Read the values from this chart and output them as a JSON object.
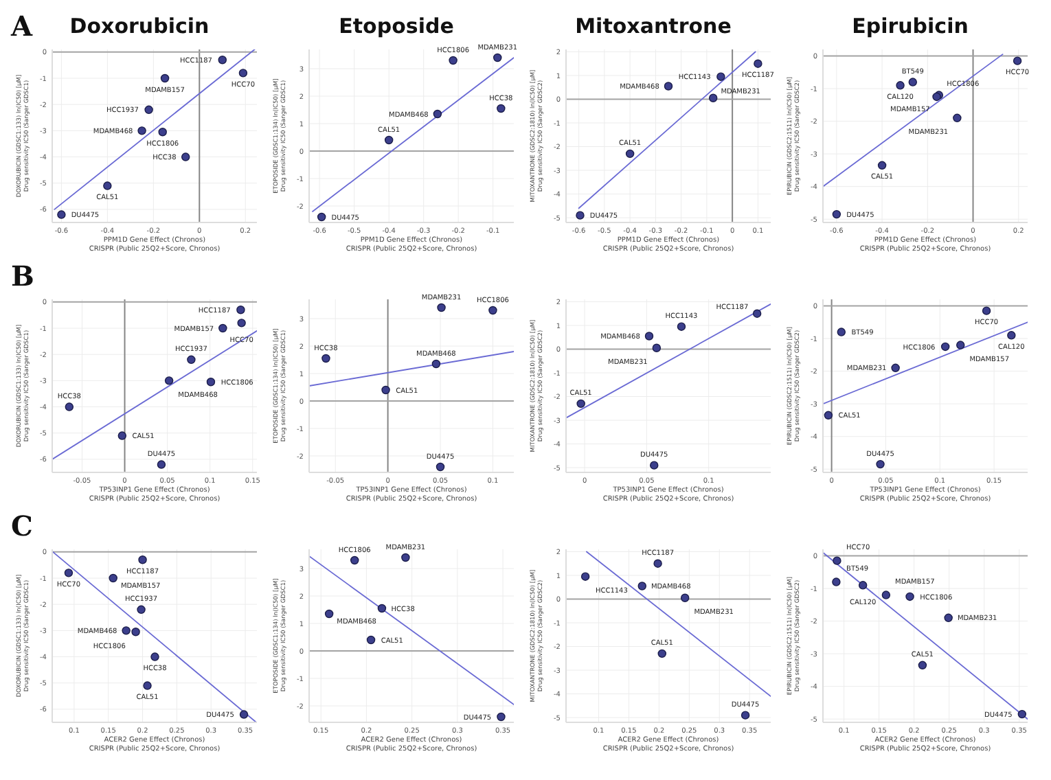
{
  "chart_data": [
    {
      "type": "scatter",
      "title": "Doxorubicin",
      "xlabel": "PPM1D Gene Effect (Chronos)\nCRISPR (Public 25Q2+Score, Chronos)",
      "ylabel": "DOXORUBICIN (GDSC1:133) ln(IC50) [µM]\nDrug sensitivity IC50 (Sanger GDSC1)",
      "xlim": [
        -0.64,
        0.25
      ],
      "xticks": [
        -0.6,
        -0.4,
        -0.2,
        0,
        0.2
      ],
      "ylim": [
        -6.5,
        0.1
      ],
      "yticks": [
        -6,
        -5,
        -4,
        -3,
        -2,
        -1,
        0
      ],
      "grid": true,
      "series": [
        {
          "color": "#3c3f8c",
          "marker": "circle",
          "x": [
            0.1,
            0.19,
            -0.15,
            -0.22,
            -0.25,
            -0.16,
            -0.06,
            -0.4,
            -0.6
          ],
          "values": [
            -0.3,
            -0.8,
            -1,
            -2.2,
            -3,
            -3.05,
            -4,
            -5.1,
            -6.2
          ]
        },
        {
          "type": "line",
          "color": "#6a6ad4",
          "marker": "none",
          "x": [
            -0.63,
            0.24
          ],
          "values": [
            -6,
            0.1
          ]
        }
      ],
      "ref_lines": [
        {
          "axis": "x",
          "value": 0
        },
        {
          "axis": "y",
          "value": 0
        }
      ],
      "annotations": [
        "A",
        {
          "text": "HCC1187",
          "x": 0.1,
          "y": -0.3
        },
        {
          "text": "HCC70",
          "x": 0.19,
          "y": -0.8
        },
        {
          "text": "MDAMB157",
          "x": -0.15,
          "y": -1
        },
        {
          "text": "HCC1937",
          "x": -0.22,
          "y": -2.2
        },
        {
          "text": "MDAMB468",
          "x": -0.25,
          "y": -3
        },
        {
          "text": "HCC1806",
          "x": -0.16,
          "y": -3.05
        },
        {
          "text": "HCC38",
          "x": -0.06,
          "y": -4
        },
        {
          "text": "CAL51",
          "x": -0.4,
          "y": -5.1
        },
        {
          "text": "DU4475",
          "x": -0.6,
          "y": -6.2
        }
      ]
    },
    {
      "type": "scatter",
      "title": "Etoposide",
      "xlabel": "PPM1D Gene Effect (Chronos)\nCRISPR (Public 25Q2+Score, Chronos)",
      "ylabel": "ETOPOSIDE (GDSC1:134) ln(IC50) [µM]\nDrug sensitivity IC50 (Sanger GDSC1)",
      "xlim": [
        -0.63,
        -0.04
      ],
      "xticks": [
        -0.6,
        -0.5,
        -0.4,
        -0.3,
        -0.2,
        -0.1
      ],
      "ylim": [
        -2.6,
        3.7
      ],
      "yticks": [
        -2,
        -1,
        0,
        1,
        2,
        3
      ],
      "grid": true,
      "series": [
        {
          "color": "#3c3f8c",
          "marker": "circle",
          "x": [
            -0.215,
            -0.087,
            -0.077,
            -0.26,
            -0.4,
            -0.594
          ],
          "values": [
            3.3,
            3.4,
            1.55,
            1.35,
            0.4,
            -2.4
          ]
        },
        {
          "type": "line",
          "color": "#6a6ad4",
          "marker": "none",
          "x": [
            -0.62,
            -0.04
          ],
          "values": [
            -2.2,
            3.4
          ]
        }
      ],
      "ref_lines": [
        {
          "axis": "y",
          "value": 0
        }
      ],
      "annotations": [
        {
          "text": "HCC1806",
          "x": -0.215,
          "y": 3.3
        },
        {
          "text": "MDAMB231",
          "x": -0.087,
          "y": 3.4
        },
        {
          "text": "HCC38",
          "x": -0.077,
          "y": 1.55
        },
        {
          "text": "MDAMB468",
          "x": -0.26,
          "y": 1.35
        },
        {
          "text": "CAL51",
          "x": -0.4,
          "y": 0.4
        },
        {
          "text": "DU4475",
          "x": -0.594,
          "y": -2.4
        }
      ]
    },
    {
      "type": "scatter",
      "title": "Mitoxantrone",
      "xlabel": "PPM1D Gene Effect (Chronos)\nCRISPR (Public 25Q2+Score, Chronos)",
      "ylabel": "MITOXANTRONE (GDSC2:1810) ln(IC50) [µM]\nDrug sensitivity IC50 (Sanger GDSC2)",
      "xlim": [
        -0.65,
        0.15
      ],
      "xticks": [
        -0.6,
        -0.5,
        -0.4,
        -0.3,
        -0.2,
        -0.1,
        0,
        0.1
      ],
      "ylim": [
        -5.2,
        2.1
      ],
      "yticks": [
        -5,
        -4,
        -3,
        -2,
        -1,
        0,
        1,
        2
      ],
      "grid": true,
      "series": [
        {
          "color": "#3c3f8c",
          "marker": "circle",
          "x": [
            0.1,
            -0.045,
            -0.25,
            -0.075,
            -0.4,
            -0.595
          ],
          "values": [
            1.5,
            0.95,
            0.55,
            0.05,
            -2.3,
            -4.9
          ]
        },
        {
          "type": "line",
          "color": "#6a6ad4",
          "marker": "none",
          "x": [
            -0.6,
            0.09
          ],
          "values": [
            -4.6,
            2
          ]
        }
      ],
      "ref_lines": [
        {
          "axis": "x",
          "value": 0
        },
        {
          "axis": "y",
          "value": 0
        }
      ],
      "annotations": [
        {
          "text": "HCC1187",
          "x": 0.1,
          "y": 1.5
        },
        {
          "text": "HCC1143",
          "x": -0.045,
          "y": 0.95
        },
        {
          "text": "MDAMB468",
          "x": -0.25,
          "y": 0.55
        },
        {
          "text": "MDAMB231",
          "x": -0.075,
          "y": 0.05
        },
        {
          "text": "CAL51",
          "x": -0.4,
          "y": -2.3
        },
        {
          "text": "DU4475",
          "x": -0.595,
          "y": -4.9
        }
      ]
    },
    {
      "type": "scatter",
      "title": "Epirubicin",
      "xlabel": "PPM1D Gene Effect (Chronos)\nCRISPR (Public 25Q2+Score, Chronos)",
      "ylabel": "EPIRUBICIN (GDSC2:1511) ln(IC50) [µM]\nDrug sensitivity IC50 (Sanger GDSC2)",
      "xlim": [
        -0.66,
        0.24
      ],
      "xticks": [
        -0.6,
        -0.4,
        -0.2,
        0,
        0.2
      ],
      "ylim": [
        -5.1,
        0.2
      ],
      "yticks": [
        -5,
        -4,
        -3,
        -2,
        -1,
        0
      ],
      "grid": true,
      "series": [
        {
          "color": "#3c3f8c",
          "marker": "circle",
          "x": [
            0.195,
            -0.265,
            -0.32,
            -0.15,
            -0.16,
            -0.07,
            -0.4,
            -0.6
          ],
          "values": [
            -0.15,
            -0.8,
            -0.9,
            -1.2,
            -1.25,
            -1.9,
            -3.35,
            -4.85
          ]
        },
        {
          "type": "line",
          "color": "#6a6ad4",
          "marker": "none",
          "x": [
            -0.66,
            0.13
          ],
          "values": [
            -4,
            0.05
          ]
        }
      ],
      "ref_lines": [
        {
          "axis": "x",
          "value": 0
        },
        {
          "axis": "y",
          "value": 0
        }
      ],
      "annotations": [
        {
          "text": "HCC70",
          "x": 0.195,
          "y": -0.15
        },
        {
          "text": "BT549",
          "x": -0.265,
          "y": -0.8
        },
        {
          "text": "CAL120",
          "x": -0.32,
          "y": -0.9
        },
        {
          "text": "MDAMB157",
          "x": -0.15,
          "y": -1.2
        },
        {
          "text": "HCC1806",
          "x": -0.16,
          "y": -1.25
        },
        {
          "text": "MDAMB231",
          "x": -0.07,
          "y": -1.9
        },
        {
          "text": "CAL51",
          "x": -0.4,
          "y": -3.35
        },
        {
          "text": "DU4475",
          "x": -0.6,
          "y": -4.85
        }
      ]
    },
    {
      "type": "scatter",
      "xlabel": "TP53INP1 Gene Effect (Chronos)\nCRISPR (Public 25Q2+Score, Chronos)",
      "ylabel": "DOXORUBICIN (GDSC1:133) ln(IC50) [µM]\nDrug sensitivity IC50 (Sanger GDSC1)",
      "xlim": [
        -0.085,
        0.155
      ],
      "xticks": [
        -0.05,
        0,
        0.05,
        0.1,
        0.15
      ],
      "ylim": [
        -6.5,
        0.1
      ],
      "yticks": [
        -6,
        -5,
        -4,
        -3,
        -2,
        -1,
        0
      ],
      "grid": true,
      "series": [
        {
          "color": "#3c3f8c",
          "marker": "circle",
          "x": [
            0.136,
            0.137,
            0.115,
            0.078,
            0.052,
            0.101,
            -0.065,
            -0.003,
            0.043
          ],
          "values": [
            -0.3,
            -0.8,
            -1,
            -2.2,
            -3,
            -3.05,
            -4,
            -5.1,
            -6.2
          ]
        },
        {
          "type": "line",
          "color": "#6a6ad4",
          "marker": "none",
          "x": [
            -0.085,
            0.155
          ],
          "values": [
            -6,
            -1.1
          ]
        }
      ],
      "ref_lines": [
        {
          "axis": "x",
          "value": 0
        },
        {
          "axis": "y",
          "value": 0
        }
      ],
      "annotations": [
        "B",
        {
          "text": "HCC1187",
          "x": 0.136,
          "y": -0.3
        },
        {
          "text": "HCC70",
          "x": 0.137,
          "y": -0.8
        },
        {
          "text": "MDAMB157",
          "x": 0.115,
          "y": -1
        },
        {
          "text": "HCC1937",
          "x": 0.078,
          "y": -2.2
        },
        {
          "text": "MDAMB468",
          "x": 0.052,
          "y": -3
        },
        {
          "text": "HCC1806",
          "x": 0.101,
          "y": -3.05
        },
        {
          "text": "HCC38",
          "x": -0.065,
          "y": -4
        },
        {
          "text": "CAL51",
          "x": -0.003,
          "y": -5.1
        },
        {
          "text": "DU4475",
          "x": 0.043,
          "y": -6.2
        }
      ]
    },
    {
      "type": "scatter",
      "xlabel": "TP53INP1 Gene Effect (Chronos)\nCRISPR (Public 25Q2+Score, Chronos)",
      "ylabel": "ETOPOSIDE (GDSC1:134) ln(IC50) [µM]\nDrug sensitivity IC50 (Sanger GDSC1)",
      "xlim": [
        -0.075,
        0.12
      ],
      "xticks": [
        -0.05,
        0,
        0.05,
        0.1
      ],
      "ylim": [
        -2.6,
        3.7
      ],
      "yticks": [
        -2,
        -1,
        0,
        1,
        2,
        3
      ],
      "grid": true,
      "series": [
        {
          "color": "#3c3f8c",
          "marker": "circle",
          "x": [
            0.1,
            0.051,
            -0.059,
            0.046,
            -0.002,
            0.05
          ],
          "values": [
            3.3,
            3.4,
            1.55,
            1.35,
            0.4,
            -2.4
          ]
        },
        {
          "type": "line",
          "color": "#6a6ad4",
          "marker": "none",
          "x": [
            -0.075,
            0.12
          ],
          "values": [
            0.55,
            1.8
          ]
        }
      ],
      "ref_lines": [
        {
          "axis": "x",
          "value": 0
        },
        {
          "axis": "y",
          "value": 0
        }
      ],
      "annotations": [
        {
          "text": "HCC1806",
          "x": 0.1,
          "y": 3.3
        },
        {
          "text": "MDAMB231",
          "x": 0.051,
          "y": 3.4
        },
        {
          "text": "HCC38",
          "x": -0.059,
          "y": 1.55
        },
        {
          "text": "MDAMB468",
          "x": 0.046,
          "y": 1.35
        },
        {
          "text": "CAL51",
          "x": -0.002,
          "y": 0.4
        },
        {
          "text": "DU4475",
          "x": 0.05,
          "y": -2.4
        }
      ]
    },
    {
      "type": "scatter",
      "xlabel": "TP53INP1 Gene Effect (Chronos)\nCRISPR (Public 25Q2+Score, Chronos)",
      "ylabel": "MITOXANTRONE (GDSC2:1810) ln(IC50) [µM]\nDrug sensitivity IC50 (Sanger GDSC2)",
      "xlim": [
        -0.015,
        0.15
      ],
      "xticks": [
        0,
        0.05,
        0.1
      ],
      "ylim": [
        -5.2,
        2.1
      ],
      "yticks": [
        -5,
        -4,
        -3,
        -2,
        -1,
        0,
        1,
        2
      ],
      "grid": true,
      "series": [
        {
          "color": "#3c3f8c",
          "marker": "circle",
          "x": [
            0.139,
            0.078,
            0.052,
            0.058,
            -0.003,
            0.056
          ],
          "values": [
            1.5,
            0.95,
            0.55,
            0.05,
            -2.3,
            -4.9
          ]
        },
        {
          "type": "line",
          "color": "#6a6ad4",
          "marker": "none",
          "x": [
            -0.015,
            0.15
          ],
          "values": [
            -2.9,
            1.9
          ]
        }
      ],
      "ref_lines": [
        {
          "axis": "y",
          "value": 0
        }
      ],
      "annotations": [
        {
          "text": "HCC1187",
          "x": 0.139,
          "y": 1.5
        },
        {
          "text": "HCC1143",
          "x": 0.078,
          "y": 0.95
        },
        {
          "text": "MDAMB468",
          "x": 0.052,
          "y": 0.55
        },
        {
          "text": "MDAMB231",
          "x": 0.058,
          "y": 0.05
        },
        {
          "text": "CAL51",
          "x": -0.003,
          "y": -2.3
        },
        {
          "text": "DU4475",
          "x": 0.056,
          "y": -4.9
        }
      ]
    },
    {
      "type": "scatter",
      "xlabel": "TP53INP1 Gene Effect (Chronos)\nCRISPR (Public 25Q2+Score, Chronos)",
      "ylabel": "EPIRUBICIN (GDSC2:1511) ln(IC50) [µM]\nDrug sensitivity IC50 (Sanger GDSC2)",
      "xlim": [
        -0.008,
        0.181
      ],
      "xticks": [
        0,
        0.05,
        0.1,
        0.15
      ],
      "ylim": [
        -5.1,
        0.2
      ],
      "yticks": [
        -5,
        -4,
        -3,
        -2,
        -1,
        0
      ],
      "grid": true,
      "series": [
        {
          "color": "#3c3f8c",
          "marker": "circle",
          "x": [
            0.143,
            0.009,
            0.166,
            0.119,
            0.105,
            0.059,
            -0.003,
            0.045
          ],
          "values": [
            -0.15,
            -0.8,
            -0.9,
            -1.2,
            -1.25,
            -1.9,
            -3.35,
            -4.85
          ]
        },
        {
          "type": "line",
          "color": "#6a6ad4",
          "marker": "none",
          "x": [
            -0.008,
            0.181
          ],
          "values": [
            -3,
            -0.5
          ]
        }
      ],
      "ref_lines": [
        {
          "axis": "x",
          "value": 0
        },
        {
          "axis": "y",
          "value": 0
        }
      ],
      "annotations": [
        {
          "text": "HCC70",
          "x": 0.143,
          "y": -0.15
        },
        {
          "text": "BT549",
          "x": 0.009,
          "y": -0.8
        },
        {
          "text": "CAL120",
          "x": 0.166,
          "y": -0.9
        },
        {
          "text": "MDAMB157",
          "x": 0.119,
          "y": -1.2
        },
        {
          "text": "HCC1806",
          "x": 0.105,
          "y": -1.25
        },
        {
          "text": "MDAMB231",
          "x": 0.059,
          "y": -1.9
        },
        {
          "text": "CAL51",
          "x": -0.003,
          "y": -3.35
        },
        {
          "text": "DU4475",
          "x": 0.045,
          "y": -4.85
        }
      ]
    },
    {
      "type": "scatter",
      "xlabel": "ACER2 Gene Effect (Chronos)\nCRISPR (Public 25Q2+Score, Chronos)",
      "ylabel": "DOXORUBICIN (GDSC1:133) ln(IC50) [µM]\nDrug sensitivity IC50 (Sanger GDSC1)",
      "xlim": [
        0.068,
        0.367
      ],
      "xticks": [
        0.1,
        0.15,
        0.2,
        0.25,
        0.3,
        0.35
      ],
      "ylim": [
        -6.5,
        0.1
      ],
      "yticks": [
        -6,
        -5,
        -4,
        -3,
        -2,
        -1,
        0
      ],
      "grid": true,
      "series": [
        {
          "color": "#3c3f8c",
          "marker": "circle",
          "x": [
            0.2,
            0.092,
            0.157,
            0.198,
            0.176,
            0.19,
            0.218,
            0.207,
            0.348
          ],
          "values": [
            -0.3,
            -0.8,
            -1,
            -2.2,
            -3,
            -3.05,
            -4,
            -5.1,
            -6.2
          ]
        },
        {
          "type": "line",
          "color": "#6a6ad4",
          "marker": "none",
          "x": [
            0.069,
            0.366
          ],
          "values": [
            0,
            -6.5
          ]
        }
      ],
      "ref_lines": [
        {
          "axis": "y",
          "value": 0
        }
      ],
      "annotations": [
        "C",
        {
          "text": "HCC1187",
          "x": 0.2,
          "y": -0.3
        },
        {
          "text": "HCC70",
          "x": 0.092,
          "y": -0.8
        },
        {
          "text": "MDAMB157",
          "x": 0.157,
          "y": -1
        },
        {
          "text": "HCC1937",
          "x": 0.198,
          "y": -2.2
        },
        {
          "text": "MDAMB468",
          "x": 0.176,
          "y": -3
        },
        {
          "text": "HCC1806",
          "x": 0.19,
          "y": -3.05
        },
        {
          "text": "HCC38",
          "x": 0.218,
          "y": -4
        },
        {
          "text": "CAL51",
          "x": 0.207,
          "y": -5.1
        },
        {
          "text": "DU4475",
          "x": 0.348,
          "y": -6.2
        }
      ]
    },
    {
      "type": "scatter",
      "xlabel": "ACER2 Gene Effect (Chronos)\nCRISPR (Public 25Q2+Score, Chronos)",
      "ylabel": "ETOPOSIDE (GDSC1:134) ln(IC50) [µM]\nDrug sensitivity IC50 (Sanger GDSC1)",
      "xlim": [
        0.137,
        0.362
      ],
      "xticks": [
        0.15,
        0.2,
        0.25,
        0.3,
        0.35
      ],
      "ylim": [
        -2.6,
        3.7
      ],
      "yticks": [
        -2,
        -1,
        0,
        1,
        2,
        3
      ],
      "grid": true,
      "series": [
        {
          "color": "#3c3f8c",
          "marker": "circle",
          "x": [
            0.187,
            0.243,
            0.217,
            0.159,
            0.205,
            0.348
          ],
          "values": [
            3.3,
            3.4,
            1.55,
            1.35,
            0.4,
            -2.4
          ]
        },
        {
          "type": "line",
          "color": "#6a6ad4",
          "marker": "none",
          "x": [
            0.137,
            0.362
          ],
          "values": [
            3.45,
            -1.95
          ]
        }
      ],
      "ref_lines": [
        {
          "axis": "y",
          "value": 0
        }
      ],
      "annotations": [
        {
          "text": "HCC1806",
          "x": 0.187,
          "y": 3.3
        },
        {
          "text": "MDAMB231",
          "x": 0.243,
          "y": 3.4
        },
        {
          "text": "HCC38",
          "x": 0.217,
          "y": 1.55
        },
        {
          "text": "MDAMB468",
          "x": 0.159,
          "y": 1.35
        },
        {
          "text": "CAL51",
          "x": 0.205,
          "y": 0.4
        },
        {
          "text": "DU4475",
          "x": 0.348,
          "y": -2.4
        }
      ]
    },
    {
      "type": "scatter",
      "xlabel": "ACER2 Gene Effect (Chronos)\nCRISPR (Public 25Q2+Score, Chronos)",
      "ylabel": "MITOXANTRONE (GDSC2:1810) ln(IC50) [µM]\nDrug sensitivity IC50 (Sanger GDSC2)",
      "xlim": [
        0.046,
        0.385
      ],
      "xticks": [
        0.1,
        0.15,
        0.2,
        0.25,
        0.3,
        0.35
      ],
      "ylim": [
        -5.2,
        2.1
      ],
      "yticks": [
        -5,
        -4,
        -3,
        -2,
        -1,
        0,
        1,
        2
      ],
      "grid": true,
      "series": [
        {
          "color": "#3c3f8c",
          "marker": "circle",
          "x": [
            0.198,
            0.078,
            0.172,
            0.243,
            0.205,
            0.343
          ],
          "values": [
            1.5,
            0.95,
            0.55,
            0.05,
            -2.3,
            -4.9
          ]
        },
        {
          "type": "line",
          "color": "#6a6ad4",
          "marker": "none",
          "x": [
            0.08,
            0.385
          ],
          "values": [
            2,
            -4.1
          ]
        }
      ],
      "ref_lines": [
        {
          "axis": "y",
          "value": 0
        }
      ],
      "annotations": [
        {
          "text": "HCC1187",
          "x": 0.198,
          "y": 1.5
        },
        {
          "text": "HCC1143",
          "x": 0.078,
          "y": 0.95
        },
        {
          "text": "MDAMB468",
          "x": 0.172,
          "y": 0.55
        },
        {
          "text": "MDAMB231",
          "x": 0.243,
          "y": 0.05
        },
        {
          "text": "CAL51",
          "x": 0.205,
          "y": -2.3
        },
        {
          "text": "DU4475",
          "x": 0.343,
          "y": -4.9
        }
      ]
    },
    {
      "type": "scatter",
      "xlabel": "ACER2 Gene Effect (Chronos)\nCRISPR (Public 25Q2+Score, Chronos)",
      "ylabel": "EPIRUBICIN (GDSC2:1511) ln(IC50) [µM]\nDrug sensitivity IC50 (Sanger GDSC2)",
      "xlim": [
        0.07,
        0.362
      ],
      "xticks": [
        0.1,
        0.15,
        0.2,
        0.25,
        0.3,
        0.35
      ],
      "ylim": [
        -5.1,
        0.2
      ],
      "yticks": [
        -5,
        -4,
        -3,
        -2,
        -1,
        0
      ],
      "grid": true,
      "series": [
        {
          "color": "#3c3f8c",
          "marker": "circle",
          "x": [
            0.09,
            0.089,
            0.127,
            0.16,
            0.194,
            0.249,
            0.212,
            0.354
          ],
          "values": [
            -0.15,
            -0.8,
            -0.9,
            -1.2,
            -1.25,
            -1.9,
            -3.35,
            -4.85
          ]
        },
        {
          "type": "line",
          "color": "#6a6ad4",
          "marker": "none",
          "x": [
            0.07,
            0.362
          ],
          "values": [
            0.1,
            -5
          ]
        }
      ],
      "ref_lines": [
        {
          "axis": "y",
          "value": 0
        }
      ],
      "annotations": [
        {
          "text": "HCC70",
          "x": 0.09,
          "y": -0.15
        },
        {
          "text": "BT549",
          "x": 0.089,
          "y": -0.8
        },
        {
          "text": "CAL120",
          "x": 0.127,
          "y": -0.9
        },
        {
          "text": "MDAMB157",
          "x": 0.16,
          "y": -1.2
        },
        {
          "text": "HCC1806",
          "x": 0.194,
          "y": -1.25
        },
        {
          "text": "MDAMB231",
          "x": 0.249,
          "y": -1.9
        },
        {
          "text": "CAL51",
          "x": 0.212,
          "y": -3.35
        },
        {
          "text": "DU4475",
          "x": 0.354,
          "y": -4.85
        }
      ]
    }
  ]
}
